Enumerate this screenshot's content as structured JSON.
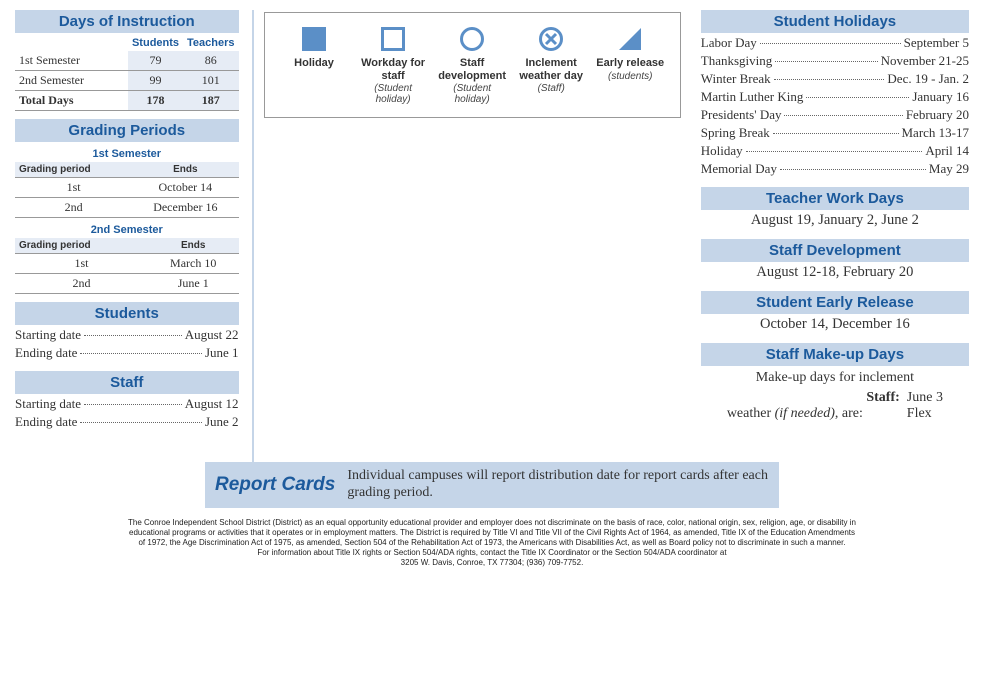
{
  "colors": {
    "header_bg": "#c5d5e8",
    "header_text": "#1c5a9c",
    "cell_bg": "#e6ecf5",
    "icon_blue": "#5b8fc7"
  },
  "daysOfInstruction": {
    "title": "Days of Instruction",
    "col_students": "Students",
    "col_teachers": "Teachers",
    "rows": [
      {
        "label": "1st Semester",
        "students": "79",
        "teachers": "86"
      },
      {
        "label": "2nd Semester",
        "students": "99",
        "teachers": "101"
      }
    ],
    "total": {
      "label": "Total Days",
      "students": "178",
      "teachers": "187"
    }
  },
  "gradingPeriods": {
    "title": "Grading Periods",
    "col_period": "Grading period",
    "col_ends": "Ends",
    "sem1": {
      "title": "1st Semester",
      "rows": [
        {
          "period": "1st",
          "ends": "October 14"
        },
        {
          "period": "2nd",
          "ends": "December 16"
        }
      ]
    },
    "sem2": {
      "title": "2nd Semester",
      "rows": [
        {
          "period": "1st",
          "ends": "March 10"
        },
        {
          "period": "2nd",
          "ends": "June 1"
        }
      ]
    }
  },
  "students": {
    "title": "Students",
    "start_label": "Starting date",
    "start_value": "August 22",
    "end_label": "Ending date",
    "end_value": "June 1"
  },
  "staff": {
    "title": "Staff",
    "start_label": "Starting date",
    "start_value": "August 12",
    "end_label": "Ending date",
    "end_value": "June 2"
  },
  "legend": {
    "items": [
      {
        "label": "Holiday",
        "sub": ""
      },
      {
        "label": "Workday for staff",
        "sub": "(Student holiday)"
      },
      {
        "label": "Staff development",
        "sub": "(Student holiday)"
      },
      {
        "label": "Inclement weather day",
        "sub": "(Staff)"
      },
      {
        "label": "Early release",
        "sub": "(students)"
      }
    ]
  },
  "studentHolidays": {
    "title": "Student Holidays",
    "items": [
      {
        "label": "Labor Day",
        "date": "September 5"
      },
      {
        "label": "Thanksgiving",
        "date": "November 21-25"
      },
      {
        "label": "Winter Break",
        "date": "Dec. 19 - Jan. 2"
      },
      {
        "label": "Martin Luther King",
        "date": "January 16"
      },
      {
        "label": "Presidents' Day",
        "date": "February 20"
      },
      {
        "label": "Spring Break",
        "date": "March 13-17"
      },
      {
        "label": "Holiday",
        "date": "April 14"
      },
      {
        "label": "Memorial Day",
        "date": "May 29"
      }
    ]
  },
  "teacherWorkDays": {
    "title": "Teacher Work Days",
    "text": "August 19, January 2, June 2"
  },
  "staffDevelopment": {
    "title": "Staff Development",
    "text": "August 12-18, February 20"
  },
  "studentEarlyRelease": {
    "title": "Student Early Release",
    "text": "October 14, December 16"
  },
  "staffMakeup": {
    "title": "Staff Make-up Days",
    "line1": "Make-up days for inclement",
    "line2_a": "weather ",
    "line2_b": "(if needed)",
    "line2_c": ", are:",
    "staff_label": "Staff:",
    "staff_val1": "June 3",
    "staff_val2": "Flex"
  },
  "reportCards": {
    "title": "Report Cards",
    "text": "Individual campuses will report distribution date for report cards after each grading period."
  },
  "disclaimer": {
    "l1": "The Conroe Independent School District (District) as an equal opportunity educational provider and employer does not discriminate on the basis of race, color, national origin, sex, religion, age, or disability in",
    "l2": "educational programs or activities that it operates or in employment matters. The District is required by Title VI and Title VII of the Civil Rights Act of 1964, as amended, Title IX of the Education Amendments",
    "l3": "of 1972, the Age Discrimination Act of 1975, as amended, Section 504 of the Rehabilitation Act of 1973, the Americans with Disabilities Act, as well as Board policy not to discriminate in such a manner.",
    "l4": "For information about Title IX rights or Section 504/ADA rights, contact the Title IX Coordinator or the Section 504/ADA coordinator at",
    "l5": "3205 W. Davis, Conroe, TX 77304; (936) 709-7752."
  }
}
